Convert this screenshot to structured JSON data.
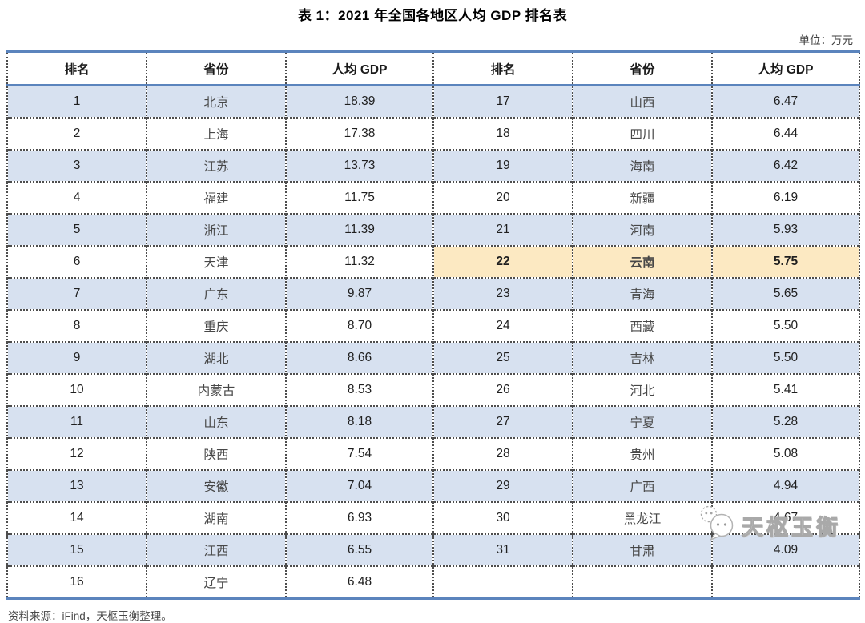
{
  "page": {
    "title": "表 1：2021 年全国各地区人均 GDP 排名表",
    "unit_note": "单位：万元",
    "source_note": "资料来源：iFind，天枢玉衡整理。",
    "watermark_text": "天枢玉衡",
    "watermark_icon": "wechat-bubbles-icon"
  },
  "table": {
    "colors": {
      "band_row": "#d7e1f0",
      "highlight_row": "#fce9c2",
      "blue_line": "#5b84bd",
      "dotted_border": "#4d4d4d"
    },
    "header": [
      "排名",
      "省份",
      "人均 GDP",
      "排名",
      "省份",
      "人均 GDP"
    ],
    "rows": [
      {
        "cells": [
          "1",
          "北京",
          "18.39",
          "17",
          "山西",
          "6.47"
        ],
        "band": true,
        "highlight": false
      },
      {
        "cells": [
          "2",
          "上海",
          "17.38",
          "18",
          "四川",
          "6.44"
        ],
        "band": false,
        "highlight": false
      },
      {
        "cells": [
          "3",
          "江苏",
          "13.73",
          "19",
          "海南",
          "6.42"
        ],
        "band": true,
        "highlight": false
      },
      {
        "cells": [
          "4",
          "福建",
          "11.75",
          "20",
          "新疆",
          "6.19"
        ],
        "band": false,
        "highlight": false
      },
      {
        "cells": [
          "5",
          "浙江",
          "11.39",
          "21",
          "河南",
          "5.93"
        ],
        "band": true,
        "highlight": false
      },
      {
        "cells": [
          "6",
          "天津",
          "11.32",
          "22",
          "云南",
          "5.75"
        ],
        "band": false,
        "highlight": true
      },
      {
        "cells": [
          "7",
          "广东",
          "9.87",
          "23",
          "青海",
          "5.65"
        ],
        "band": true,
        "highlight": false
      },
      {
        "cells": [
          "8",
          "重庆",
          "8.70",
          "24",
          "西藏",
          "5.50"
        ],
        "band": false,
        "highlight": false
      },
      {
        "cells": [
          "9",
          "湖北",
          "8.66",
          "25",
          "吉林",
          "5.50"
        ],
        "band": true,
        "highlight": false
      },
      {
        "cells": [
          "10",
          "内蒙古",
          "8.53",
          "26",
          "河北",
          "5.41"
        ],
        "band": false,
        "highlight": false
      },
      {
        "cells": [
          "11",
          "山东",
          "8.18",
          "27",
          "宁夏",
          "5.28"
        ],
        "band": true,
        "highlight": false
      },
      {
        "cells": [
          "12",
          "陕西",
          "7.54",
          "28",
          "贵州",
          "5.08"
        ],
        "band": false,
        "highlight": false
      },
      {
        "cells": [
          "13",
          "安徽",
          "7.04",
          "29",
          "广西",
          "4.94"
        ],
        "band": true,
        "highlight": false
      },
      {
        "cells": [
          "14",
          "湖南",
          "6.93",
          "30",
          "黑龙江",
          "4.67"
        ],
        "band": false,
        "highlight": false
      },
      {
        "cells": [
          "15",
          "江西",
          "6.55",
          "31",
          "甘肃",
          "4.09"
        ],
        "band": true,
        "highlight": false
      },
      {
        "cells": [
          "16",
          "辽宁",
          "6.48",
          "",
          "",
          ""
        ],
        "band": false,
        "highlight": false
      }
    ]
  }
}
